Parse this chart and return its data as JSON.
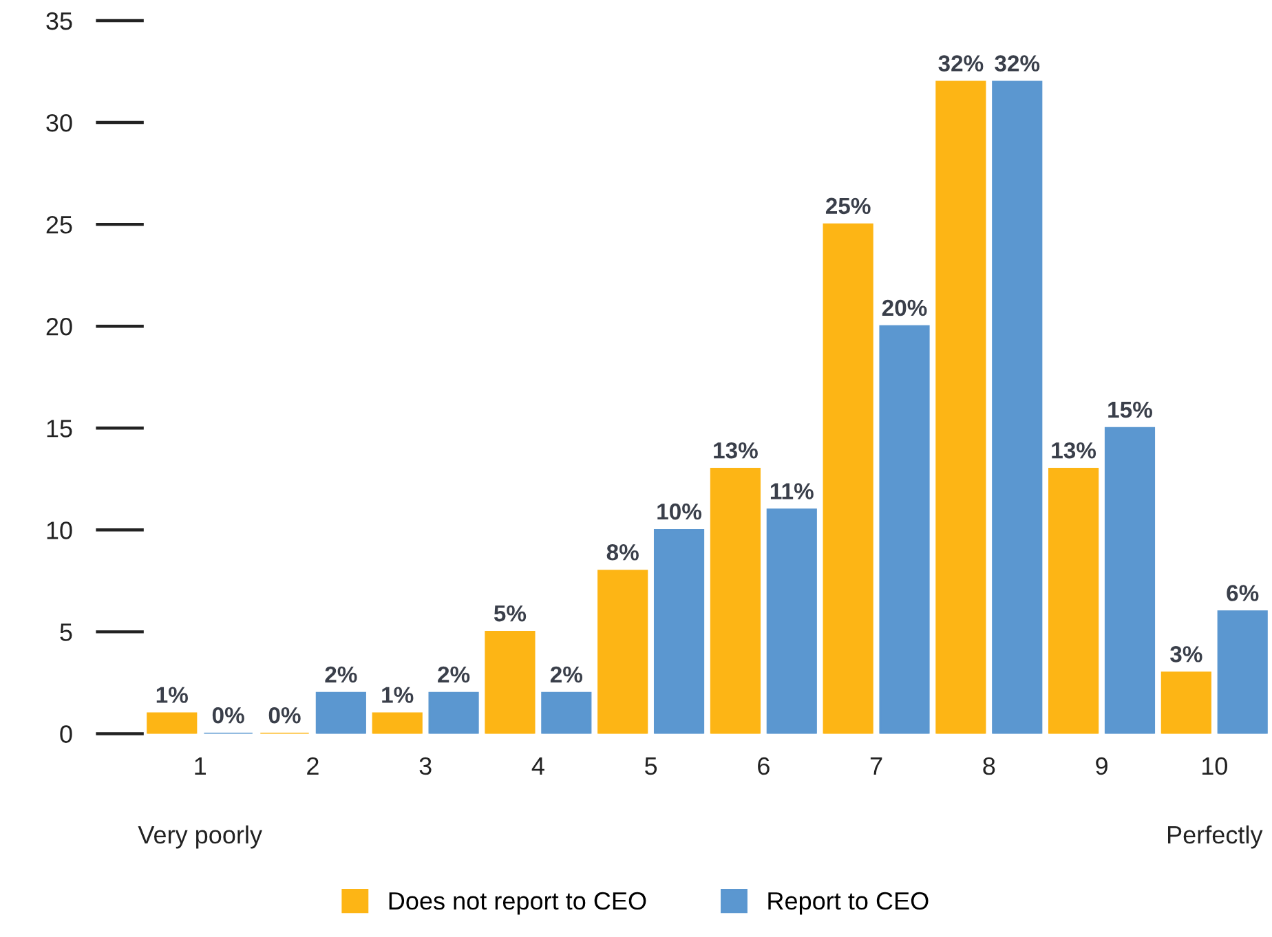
{
  "chart_data": {
    "type": "bar",
    "categories": [
      "1",
      "2",
      "3",
      "4",
      "5",
      "6",
      "7",
      "8",
      "9",
      "10"
    ],
    "series": [
      {
        "name": "Does not report to CEO",
        "color": "#fdb515",
        "values": [
          1,
          0,
          1,
          5,
          8,
          13,
          25,
          32,
          13,
          3
        ],
        "value_labels": [
          "1%",
          "0%",
          "1%",
          "5%",
          "8%",
          "13%",
          "25%",
          "32%",
          "13%",
          "3%"
        ]
      },
      {
        "name": "Report to CEO",
        "color": "#5b97d0",
        "values": [
          0,
          2,
          2,
          2,
          10,
          11,
          20,
          32,
          15,
          6
        ],
        "value_labels": [
          "0%",
          "2%",
          "2%",
          "2%",
          "10%",
          "11%",
          "20%",
          "32%",
          "15%",
          "6%"
        ]
      }
    ],
    "ylim": [
      0,
      35
    ],
    "yticks": [
      0,
      5,
      10,
      15,
      20,
      25,
      30,
      35
    ],
    "grid": false,
    "legend": "bottom",
    "annotations": [
      "Very poorly",
      "Perfectly"
    ]
  }
}
